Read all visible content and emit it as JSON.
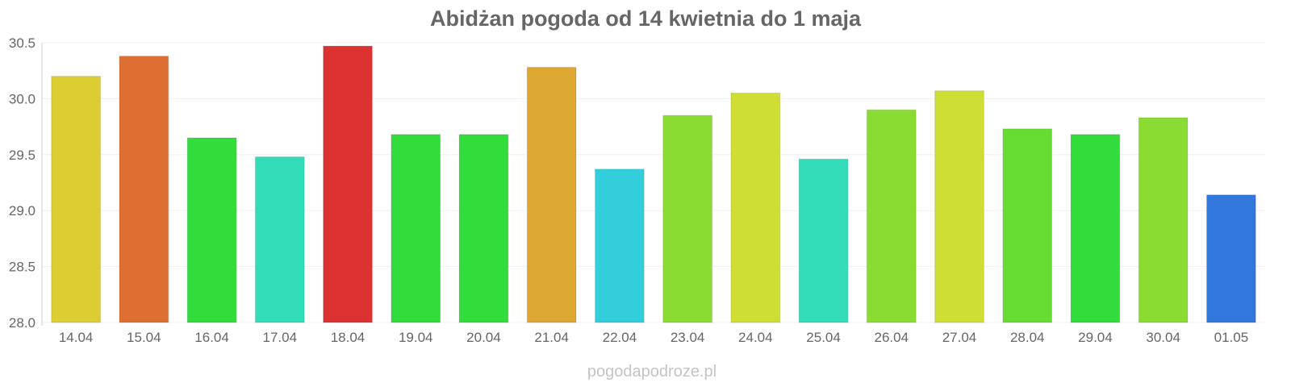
{
  "chart_data": {
    "type": "bar",
    "title": "Abidżan pogoda od 14 kwietnia do 1 maja",
    "categories": [
      "14.04",
      "15.04",
      "16.04",
      "17.04",
      "18.04",
      "19.04",
      "20.04",
      "21.04",
      "22.04",
      "23.04",
      "24.04",
      "25.04",
      "26.04",
      "27.04",
      "28.04",
      "29.04",
      "30.04",
      "01.05"
    ],
    "values": [
      30.2,
      30.38,
      29.65,
      29.48,
      30.47,
      29.68,
      29.68,
      30.28,
      29.37,
      29.85,
      30.05,
      29.46,
      29.9,
      30.07,
      29.73,
      29.68,
      29.83,
      29.14
    ],
    "colors": [
      "#dccd32",
      "#de6f32",
      "#32dc3a",
      "#32dcb8",
      "#dc3232",
      "#32dc3a",
      "#32dc3a",
      "#dca832",
      "#32cedc",
      "#8bdc32",
      "#cede32",
      "#32dcb8",
      "#8bdc32",
      "#cede32",
      "#66dc32",
      "#32dc3a",
      "#8bdc32",
      "#3277dc"
    ],
    "ylim": [
      28.0,
      30.5
    ],
    "yticks": [
      "28.0",
      "28.5",
      "29.0",
      "29.5",
      "30.0",
      "30.5"
    ],
    "grid": true,
    "legend": "none"
  },
  "footer": {
    "source": "pogodapodroze.pl"
  }
}
